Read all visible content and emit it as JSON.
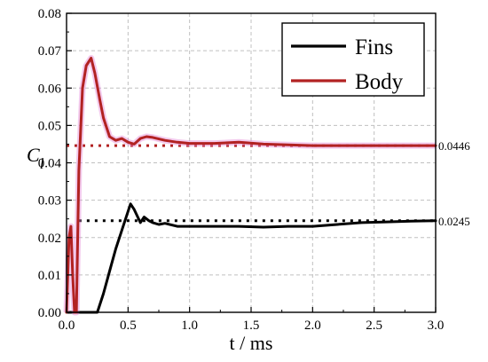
{
  "chart_data": {
    "type": "line",
    "xlabel": "t / ms",
    "ylabel": "C",
    "ylabel_sub": "l",
    "xlim": [
      0.0,
      3.0
    ],
    "ylim": [
      0.0,
      0.08
    ],
    "x_ticks": [
      "0.0",
      "0.5",
      "1.0",
      "1.5",
      "2.0",
      "2.5",
      "3.0"
    ],
    "y_ticks": [
      "0.00",
      "0.01",
      "0.02",
      "0.03",
      "0.04",
      "0.05",
      "0.06",
      "0.07",
      "0.08"
    ],
    "grid": true,
    "legend_position": "top-right",
    "series": [
      {
        "name": "Fins",
        "color": "#000000",
        "x": [
          0.0,
          0.25,
          0.3,
          0.35,
          0.4,
          0.45,
          0.5,
          0.52,
          0.55,
          0.6,
          0.63,
          0.67,
          0.7,
          0.75,
          0.8,
          0.9,
          1.0,
          1.2,
          1.4,
          1.6,
          1.8,
          2.0,
          2.2,
          2.4,
          2.6,
          2.8,
          3.0
        ],
        "y": [
          0.0,
          0.0,
          0.005,
          0.011,
          0.017,
          0.022,
          0.027,
          0.029,
          0.0275,
          0.024,
          0.0255,
          0.0245,
          0.024,
          0.0235,
          0.0238,
          0.023,
          0.023,
          0.023,
          0.023,
          0.0228,
          0.023,
          0.023,
          0.0235,
          0.024,
          0.0242,
          0.0244,
          0.0245
        ]
      },
      {
        "name": "Body",
        "color": "#b22222",
        "x": [
          0.0,
          0.02,
          0.035,
          0.05,
          0.065,
          0.08,
          0.1,
          0.13,
          0.16,
          0.2,
          0.23,
          0.27,
          0.3,
          0.35,
          0.4,
          0.45,
          0.5,
          0.55,
          0.6,
          0.65,
          0.7,
          0.8,
          0.9,
          1.0,
          1.2,
          1.4,
          1.6,
          1.8,
          2.0,
          2.5,
          3.0
        ],
        "y": [
          0.0,
          0.02,
          0.023,
          0.01,
          0.0,
          0.0,
          0.038,
          0.06,
          0.066,
          0.068,
          0.064,
          0.057,
          0.052,
          0.047,
          0.046,
          0.0465,
          0.0455,
          0.045,
          0.0465,
          0.047,
          0.0468,
          0.046,
          0.0455,
          0.0452,
          0.0452,
          0.0455,
          0.045,
          0.0448,
          0.0446,
          0.0446,
          0.0446
        ]
      }
    ],
    "reference_lines": [
      {
        "y": 0.0446,
        "x_start": 0.0,
        "color": "#b22222",
        "label": "0.0446"
      },
      {
        "y": 0.0245,
        "x_start": 0.1,
        "color": "#000000",
        "label": "0.0245"
      }
    ]
  }
}
